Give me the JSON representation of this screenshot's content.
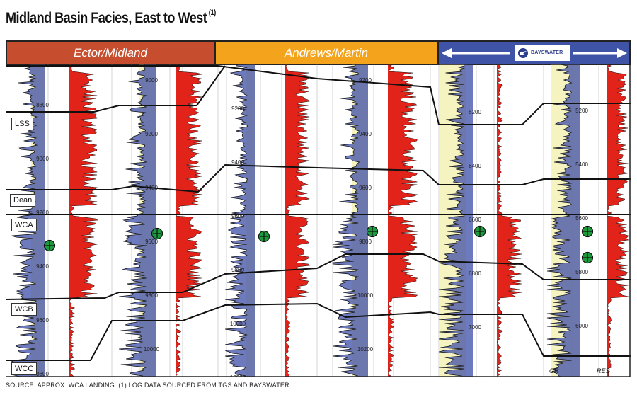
{
  "title": "Midland Basin Facies, East to West",
  "title_note": "(1)",
  "regions": {
    "ector": "Ector/Midland",
    "andrews": "Andrews/Martin",
    "bayswater_logo": "BAYSWATER"
  },
  "zones": [
    "LSS",
    "Dean",
    "WCA",
    "WCB",
    "WCC"
  ],
  "log_labels": {
    "gr": "GR",
    "res": "RES"
  },
  "source": "SOURCE: APPROX. WCA LANDING. (1) LOG DATA SOURCED FROM TGS AND BAYSWATER.",
  "colors": {
    "ector": "#c64e2e",
    "andrews": "#f4a31c",
    "bayswater": "#3f54a6",
    "gr_fill": "#3d4ea8",
    "res_fill": "#e2231a",
    "sand": "#f3f0b0",
    "landing": "#1a9a3b"
  },
  "wells": [
    {
      "depths": [
        "8800",
        "9000",
        "9200",
        "9400",
        "9600",
        "9800"
      ]
    },
    {
      "depths": [
        "9000",
        "9200",
        "9400",
        "9600",
        "9800",
        "10000"
      ]
    },
    {
      "depths": [
        "9200",
        "9400",
        "9600",
        "9800",
        "10000",
        "10200"
      ]
    },
    {
      "depths": [
        "9200",
        "9400",
        "9600",
        "9800",
        "10000",
        "10200"
      ]
    },
    {
      "depths": [
        "6200",
        "6400",
        "6600",
        "6800",
        "7000",
        "7200"
      ]
    },
    {
      "depths": [
        "5200",
        "5400",
        "5600",
        "5800",
        "6000",
        "6200"
      ]
    }
  ]
}
